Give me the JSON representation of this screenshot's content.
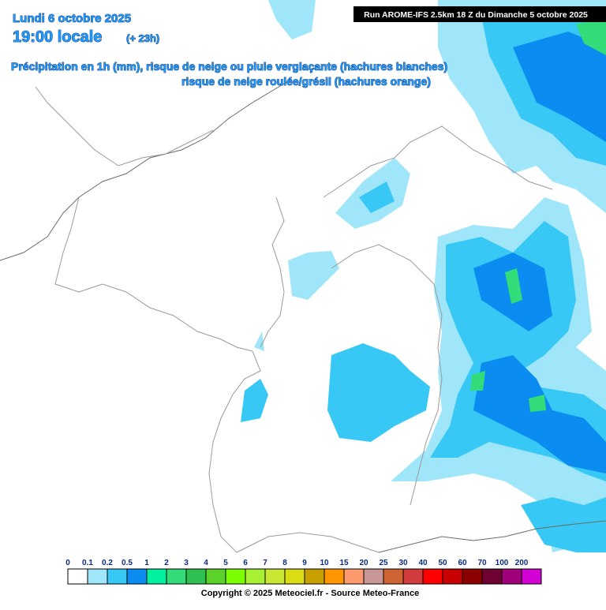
{
  "header": {
    "date": "Lundi 6 octobre 2025",
    "time": "19:00 locale",
    "lead": "(+ 23h)",
    "run": "Run AROME-IFS 2.5km 18 Z du Dimanche 5 octobre 2025"
  },
  "description": [
    "Précipitation en 1h (mm), risque de neige ou pluie verglaçante (hachures blanches)",
    "risque de neige roulée/grésil (hachures orange)"
  ],
  "legend": {
    "labels": [
      0,
      0.1,
      0.2,
      0.5,
      1,
      2,
      3,
      4,
      5,
      6,
      7,
      8,
      9,
      10,
      15,
      20,
      25,
      30,
      40,
      50,
      60,
      70,
      100,
      200
    ],
    "colors": [
      "#ffffff",
      "#a0e6fa",
      "#37c8f5",
      "#0a8cf0",
      "#00f0a0",
      "#32dc78",
      "#2ec050",
      "#5ad22a",
      "#7cff00",
      "#a8f032",
      "#c8e632",
      "#dcdc14",
      "#c8a000",
      "#ff9600",
      "#ff9a6e",
      "#c89696",
      "#d06432",
      "#d23c3c",
      "#ff0000",
      "#c80000",
      "#8c0000",
      "#6e0032",
      "#a0007a",
      "#d200d2"
    ]
  },
  "footer": "Copyright © 2025 Meteociel.fr - Source Meteo-France"
}
